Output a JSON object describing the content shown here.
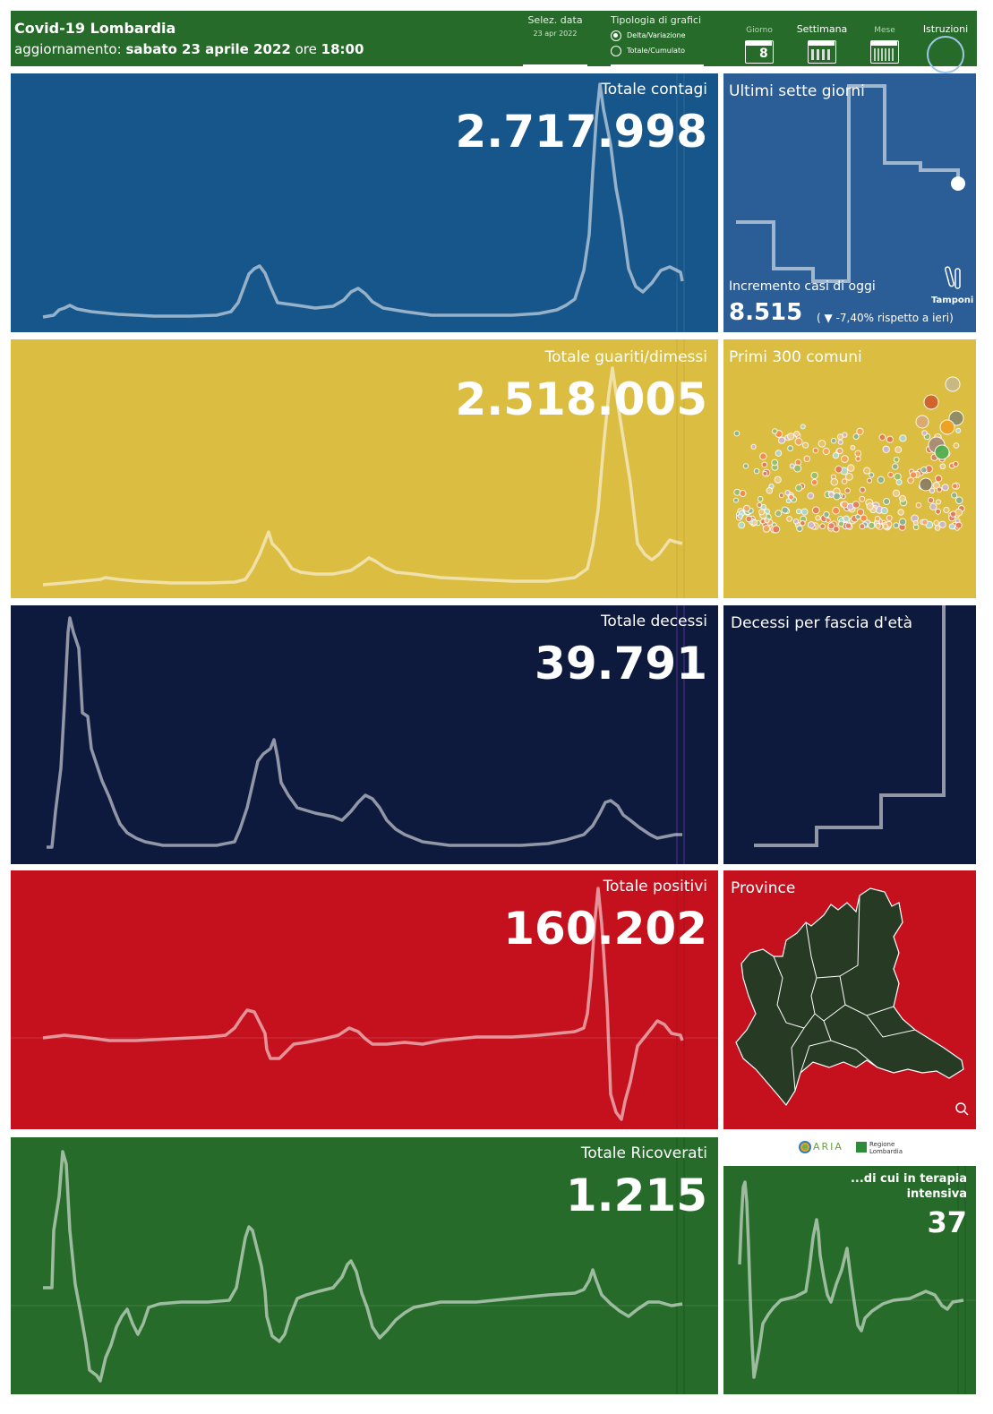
{
  "header": {
    "title": "Covid-19 Lombardia",
    "update_prefix": "aggiornamento:",
    "update_date": "sabato 23 aprile 2022",
    "update_ore": "ore",
    "update_time": "18:00",
    "date_select_label": "Selez. data",
    "date_select_value": "23 apr 2022",
    "chart_type_label": "Tipologia di grafici",
    "chart_type_options": [
      "Delta/Variazione",
      "Totale/Cumulato"
    ],
    "chart_type_selected": "Delta/Variazione",
    "period_buttons": [
      {
        "label": "Giorno",
        "icon": "calendar-day-icon",
        "badge": "8"
      },
      {
        "label": "Settimana",
        "icon": "calendar-week-icon"
      },
      {
        "label": "Mese",
        "icon": "calendar-month-icon"
      }
    ],
    "instructions_label": "Istruzioni"
  },
  "contagi": {
    "title": "Totale contagi",
    "value": "2.717.998",
    "color": "#17568a"
  },
  "ultimi": {
    "title": "Ultimi sette giorni",
    "increment_label": "Incremento casi di oggi",
    "increment_value": "8.515",
    "increment_change_prefix": "(",
    "increment_change_arrow": "▼",
    "increment_change": "-7,40% rispetto a  ieri)",
    "tamponi_label": "Tamponi",
    "color": "#2b5d97"
  },
  "guariti": {
    "title": "Totale guariti/dimessi",
    "value": "2.518.005",
    "color": "#dbbd42"
  },
  "comuni": {
    "title": "Primi 300 comuni",
    "color": "#dbbd42"
  },
  "decessi": {
    "title": "Totale decessi",
    "value": "39.791",
    "color": "#0e1a3d"
  },
  "eta": {
    "title": "Decessi per fascia d'età",
    "color": "#0e1a3d"
  },
  "positivi": {
    "title": "Totale positivi",
    "value": "160.202",
    "color": "#c4111d"
  },
  "province": {
    "title": "Province",
    "color": "#c4111d",
    "map_color": "#263a24"
  },
  "ricoverati": {
    "title": "Totale Ricoverati",
    "value": "1.215",
    "color": "#276b2a"
  },
  "terapia": {
    "title_line1": "...di cui in terapia",
    "title_line2": "intensiva",
    "value": "37",
    "color": "#276b2a"
  },
  "logos": {
    "aria": "ARIA",
    "regione_line1": "Regione",
    "regione_line2": "Lombardia"
  }
}
